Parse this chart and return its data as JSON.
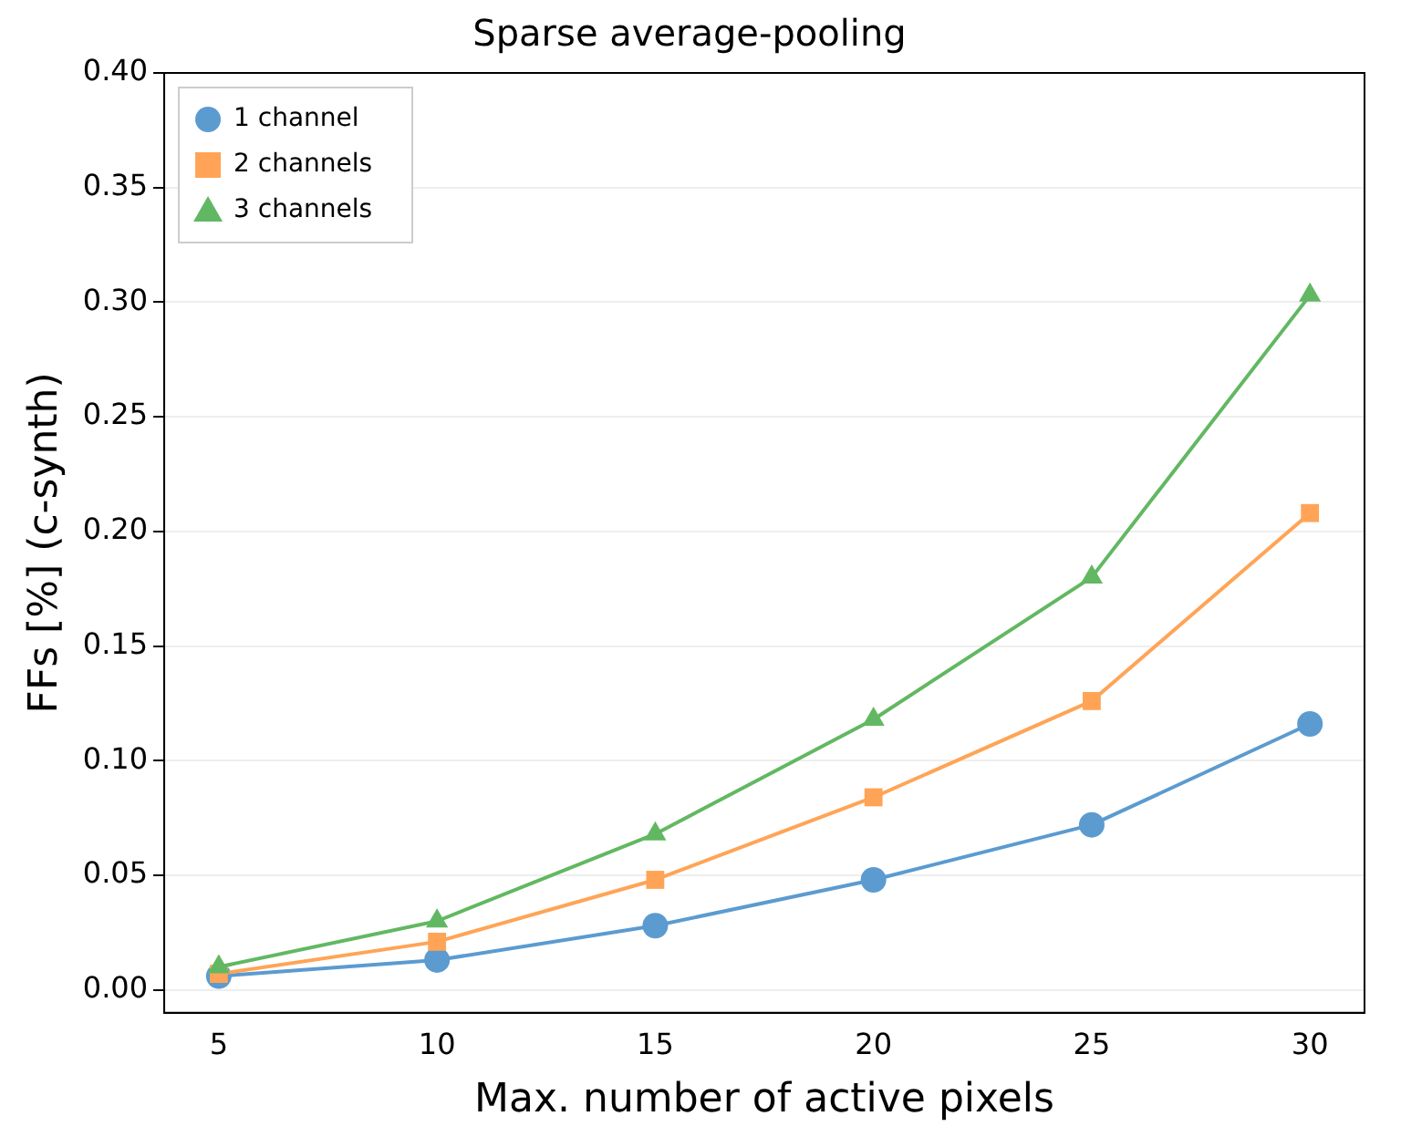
{
  "chart_data": {
    "type": "line",
    "title": "Sparse average-pooling",
    "xlabel": "Max. number of active pixels",
    "ylabel": "FFs [%] (c-synth)",
    "x": [
      5,
      10,
      15,
      20,
      25,
      30
    ],
    "series": [
      {
        "name": "1 channel",
        "color": "#5b9bd0",
        "marker": "circle",
        "values": [
          0.006,
          0.013,
          0.028,
          0.048,
          0.072,
          0.116
        ]
      },
      {
        "name": "2 channels",
        "color": "#ffa456",
        "marker": "square",
        "values": [
          0.007,
          0.021,
          0.048,
          0.084,
          0.126,
          0.208
        ]
      },
      {
        "name": "3 channels",
        "color": "#62b862",
        "marker": "triangle",
        "values": [
          0.01,
          0.03,
          0.068,
          0.118,
          0.18,
          0.303
        ]
      }
    ],
    "xlim": [
      3.75,
      31.25
    ],
    "xticks": [
      5,
      10,
      15,
      20,
      25,
      30
    ],
    "ylim": [
      -0.01,
      0.4
    ],
    "yticks": [
      {
        "value": 0,
        "label": "0.00"
      },
      {
        "value": 0.05,
        "label": "0.05"
      },
      {
        "value": 0.1,
        "label": "0.10"
      },
      {
        "value": 0.15,
        "label": "0.15"
      },
      {
        "value": 0.2,
        "label": "0.20"
      },
      {
        "value": 0.25,
        "label": "0.25"
      },
      {
        "value": 0.3,
        "label": "0.30"
      },
      {
        "value": 0.35,
        "label": "0.35"
      },
      {
        "value": 0.4,
        "label": "0.40"
      }
    ],
    "grid": "y",
    "legend": "top left"
  }
}
